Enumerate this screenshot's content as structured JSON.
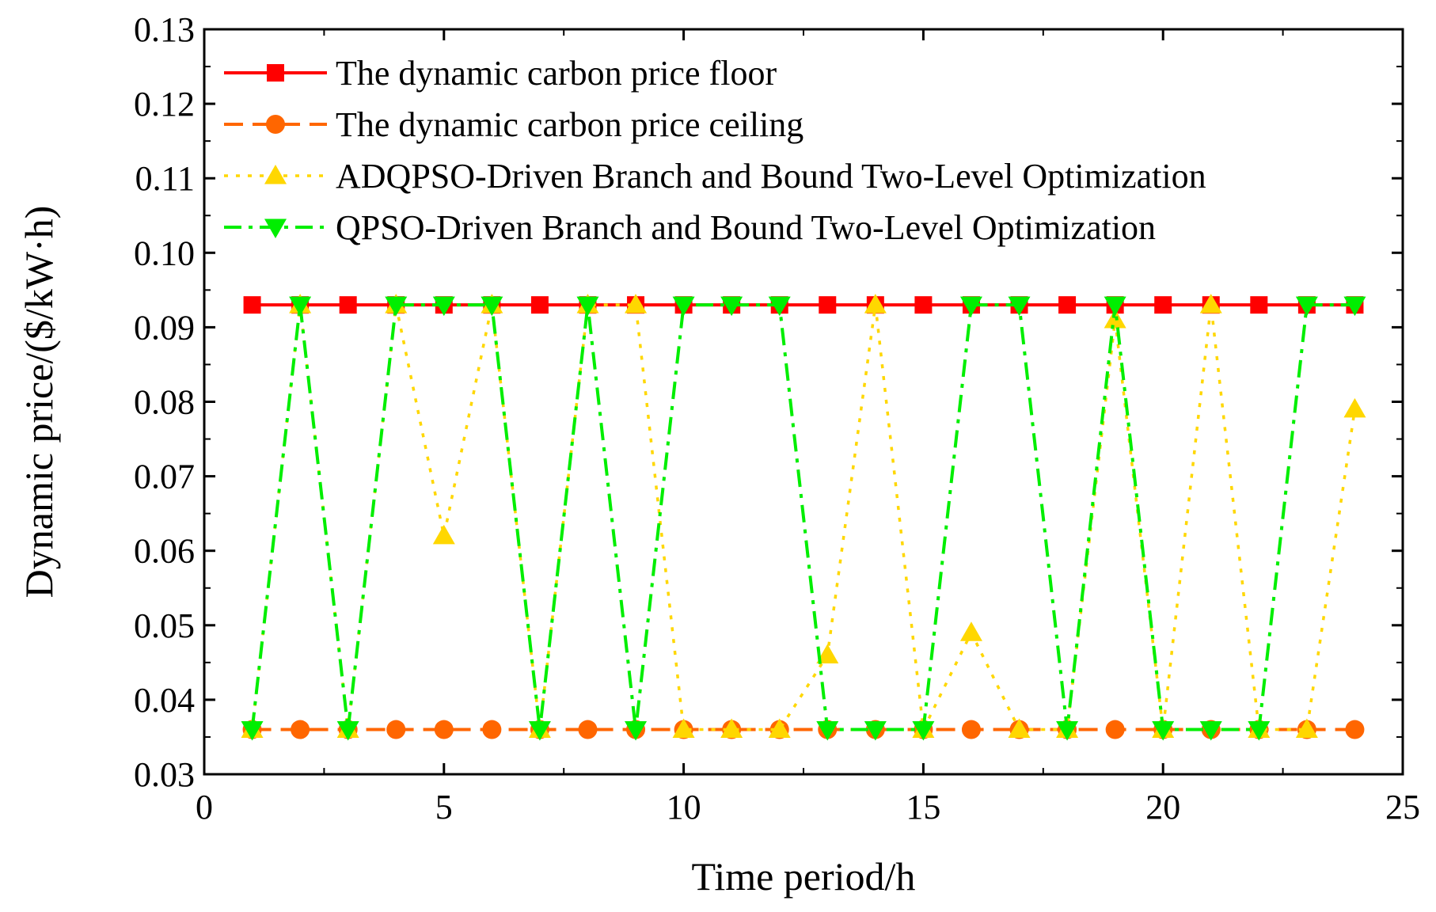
{
  "chart_data": {
    "type": "line",
    "xlabel": "Time period/h",
    "ylabel": "Dynamic price/($/kW·h)",
    "xlim": [
      0,
      25
    ],
    "ylim": [
      0.03,
      0.13
    ],
    "xticks": [
      0,
      5,
      10,
      15,
      20,
      25
    ],
    "yticks": [
      0.03,
      0.04,
      0.05,
      0.06,
      0.07,
      0.08,
      0.09,
      0.1,
      0.11,
      0.12,
      0.13
    ],
    "ytick_labels": [
      "0.03",
      "0.04",
      "0.05",
      "0.06",
      "0.07",
      "0.08",
      "0.09",
      "0.10",
      "0.11",
      "0.12",
      "0.13"
    ],
    "xtick_labels": [
      "0",
      "5",
      "10",
      "15",
      "20",
      "25"
    ],
    "grid": false,
    "legend_position": "top-left",
    "x": [
      1,
      2,
      3,
      4,
      5,
      6,
      7,
      8,
      9,
      10,
      11,
      12,
      13,
      14,
      15,
      16,
      17,
      18,
      19,
      20,
      21,
      22,
      23,
      24
    ],
    "series": [
      {
        "name": "The dynamic carbon price floor",
        "color": "#ff0000",
        "line_style": "solid",
        "marker": "square",
        "values": [
          0.093,
          0.093,
          0.093,
          0.093,
          0.093,
          0.093,
          0.093,
          0.093,
          0.093,
          0.093,
          0.093,
          0.093,
          0.093,
          0.093,
          0.093,
          0.093,
          0.093,
          0.093,
          0.093,
          0.093,
          0.093,
          0.093,
          0.093,
          0.093
        ]
      },
      {
        "name": "The dynamic carbon price ceiling",
        "color": "#ff6600",
        "line_style": "dashed",
        "marker": "circle",
        "values": [
          0.036,
          0.036,
          0.036,
          0.036,
          0.036,
          0.036,
          0.036,
          0.036,
          0.036,
          0.036,
          0.036,
          0.036,
          0.036,
          0.036,
          0.036,
          0.036,
          0.036,
          0.036,
          0.036,
          0.036,
          0.036,
          0.036,
          0.036,
          0.036
        ]
      },
      {
        "name": "ADQPSO-Driven Branch and Bound Two-Level Optimization",
        "color": "#ffd700",
        "line_style": "dotted",
        "marker": "triangle-up",
        "values": [
          0.036,
          0.093,
          0.036,
          0.093,
          0.062,
          0.093,
          0.036,
          0.093,
          0.093,
          0.036,
          0.036,
          0.036,
          0.046,
          0.093,
          0.036,
          0.049,
          0.036,
          0.036,
          0.091,
          0.036,
          0.093,
          0.036,
          0.036,
          0.079
        ]
      },
      {
        "name": "QPSO-Driven Branch and Bound Two-Level Optimization",
        "color": "#00ee00",
        "line_style": "dashdot",
        "marker": "triangle-down",
        "values": [
          0.036,
          0.093,
          0.036,
          0.093,
          0.093,
          0.093,
          0.036,
          0.093,
          0.036,
          0.093,
          0.093,
          0.093,
          0.036,
          0.036,
          0.036,
          0.093,
          0.093,
          0.036,
          0.093,
          0.036,
          0.036,
          0.036,
          0.093,
          0.093
        ]
      }
    ]
  }
}
